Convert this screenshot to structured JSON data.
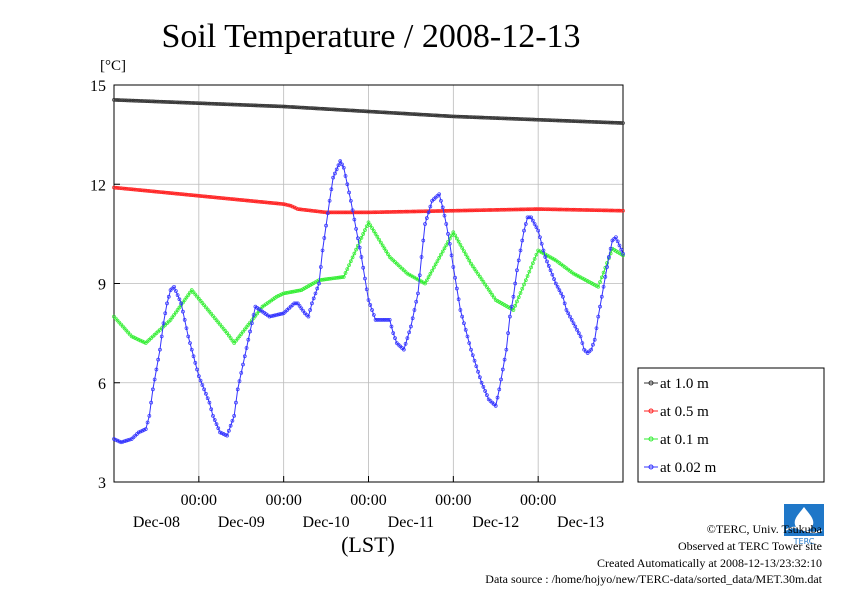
{
  "chart_data": {
    "type": "line",
    "title": "Soil Temperature / 2008-12-13",
    "ylabel": "[°C]",
    "xlabel": "(LST)",
    "ylim": [
      3,
      15
    ],
    "y_ticks": [
      3,
      6,
      9,
      12,
      15
    ],
    "xlim_hours": [
      0,
      144
    ],
    "time_ticks": [
      {
        "label": "00:00",
        "day": "Dec-08",
        "hour": 24
      },
      {
        "label": "00:00",
        "day": "Dec-09",
        "hour": 48
      },
      {
        "label": "00:00",
        "day": "Dec-10",
        "hour": 72
      },
      {
        "label": "00:00",
        "day": "Dec-11",
        "hour": 96
      },
      {
        "label": "00:00",
        "day": "Dec-12",
        "hour": 120
      },
      {
        "label": "",
        "day": "Dec-13",
        "hour": 144
      }
    ],
    "grid": true,
    "legend_position": "right",
    "series": [
      {
        "name": "at 1.0 m",
        "color": "#333333",
        "x": [
          0,
          24,
          48,
          72,
          96,
          120,
          144
        ],
        "y": [
          14.55,
          14.45,
          14.35,
          14.2,
          14.05,
          13.95,
          13.85
        ]
      },
      {
        "name": "at 0.5 m",
        "color": "#ff2222",
        "x": [
          0,
          24,
          48,
          50,
          52,
          60,
          72,
          96,
          120,
          144
        ],
        "y": [
          11.9,
          11.65,
          11.4,
          11.35,
          11.25,
          11.15,
          11.15,
          11.2,
          11.25,
          11.2
        ]
      },
      {
        "name": "at 0.1 m",
        "color": "#33ee33",
        "x": [
          0,
          5,
          9,
          16,
          22,
          32,
          34,
          42,
          46,
          48,
          53,
          58,
          65,
          72,
          78,
          83,
          88,
          96,
          101,
          108,
          113,
          120,
          125,
          130,
          137,
          141,
          144
        ],
        "y": [
          8.0,
          7.4,
          7.2,
          7.9,
          8.8,
          7.5,
          7.2,
          8.3,
          8.6,
          8.7,
          8.8,
          9.1,
          9.2,
          10.85,
          9.8,
          9.3,
          9.0,
          10.55,
          9.6,
          8.5,
          8.2,
          10.0,
          9.7,
          9.3,
          8.9,
          10.05,
          9.85
        ]
      },
      {
        "name": "at 0.02 m",
        "color": "#3333ff",
        "x": [
          0,
          2,
          5,
          7,
          9,
          10,
          11,
          13,
          14,
          15,
          16,
          17,
          19,
          21,
          24,
          27,
          28,
          30,
          32,
          34,
          35,
          37,
          40,
          44,
          48,
          50,
          51,
          52,
          54,
          55,
          56,
          58,
          59,
          61,
          62,
          64,
          65,
          67,
          70,
          72,
          74,
          77,
          78,
          79,
          80,
          82,
          84,
          86,
          87,
          88,
          90,
          92,
          93,
          94,
          95,
          96,
          98,
          101,
          104,
          106,
          107,
          108,
          109,
          111,
          112,
          113,
          114,
          115,
          116,
          117,
          118,
          120,
          122,
          125,
          127,
          128,
          130,
          132,
          133,
          134,
          135,
          136,
          137,
          138,
          139,
          140,
          141,
          142,
          144
        ],
        "y": [
          4.3,
          4.2,
          4.3,
          4.5,
          4.6,
          5.0,
          5.8,
          7.0,
          7.8,
          8.4,
          8.8,
          8.9,
          8.4,
          7.4,
          6.2,
          5.4,
          5.0,
          4.5,
          4.4,
          5.0,
          5.8,
          6.8,
          8.3,
          8.0,
          8.1,
          8.3,
          8.4,
          8.4,
          8.1,
          8.0,
          8.4,
          9.0,
          10.0,
          11.5,
          12.2,
          12.7,
          12.5,
          11.5,
          9.8,
          8.5,
          7.9,
          7.9,
          7.9,
          7.5,
          7.2,
          7.0,
          7.7,
          8.7,
          9.8,
          10.8,
          11.5,
          11.7,
          11.3,
          10.8,
          10.2,
          9.5,
          8.2,
          7.0,
          6.0,
          5.5,
          5.4,
          5.3,
          5.8,
          7.0,
          8.0,
          8.6,
          9.4,
          10.0,
          10.6,
          11.0,
          11.0,
          10.6,
          9.8,
          9.0,
          8.6,
          8.2,
          7.8,
          7.4,
          7.0,
          6.9,
          7.0,
          7.3,
          8.0,
          8.6,
          9.2,
          9.8,
          10.3,
          10.4,
          9.9
        ]
      }
    ]
  },
  "credits": {
    "copyright": "©TERC, Univ. Tsukuba",
    "observed": "Observed at TERC Tower site",
    "created": "Created Automatically at 2008-12-13/23:32:10",
    "source": "Data source : /home/hojyo/new/TERC-data/sorted_data/MET.30m.dat"
  },
  "logo": {
    "text": "TERC",
    "color": "#1f77c8"
  }
}
